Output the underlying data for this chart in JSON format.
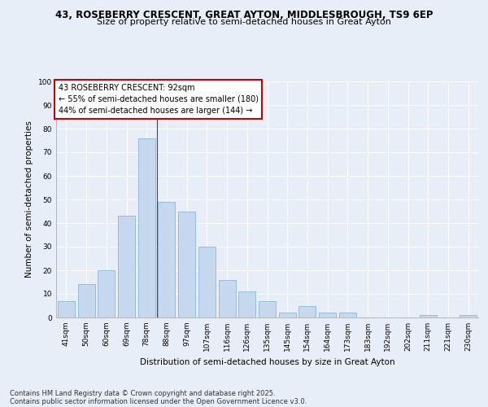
{
  "title1": "43, ROSEBERRY CRESCENT, GREAT AYTON, MIDDLESBROUGH, TS9 6EP",
  "title2": "Size of property relative to semi-detached houses in Great Ayton",
  "xlabel": "Distribution of semi-detached houses by size in Great Ayton",
  "ylabel": "Number of semi-detached properties",
  "categories": [
    "41sqm",
    "50sqm",
    "60sqm",
    "69sqm",
    "78sqm",
    "88sqm",
    "97sqm",
    "107sqm",
    "116sqm",
    "126sqm",
    "135sqm",
    "145sqm",
    "154sqm",
    "164sqm",
    "173sqm",
    "183sqm",
    "192sqm",
    "202sqm",
    "211sqm",
    "221sqm",
    "230sqm"
  ],
  "values": [
    7,
    14,
    20,
    43,
    76,
    49,
    45,
    30,
    16,
    11,
    7,
    2,
    5,
    2,
    2,
    0,
    0,
    0,
    1,
    0,
    1
  ],
  "bar_color": "#c5d8ed",
  "bar_edge_color": "#7aafd4",
  "vline_x": 4.5,
  "annotation_title": "43 ROSEBERRY CRESCENT: 92sqm",
  "annotation_line1": "← 55% of semi-detached houses are smaller (180)",
  "annotation_line2": "44% of semi-detached houses are larger (144) →",
  "ylim": [
    0,
    100
  ],
  "yticks": [
    0,
    10,
    20,
    30,
    40,
    50,
    60,
    70,
    80,
    90,
    100
  ],
  "background_color": "#e8eef8",
  "plot_bg_color": "#e8eef8",
  "footer1": "Contains HM Land Registry data © Crown copyright and database right 2025.",
  "footer2": "Contains public sector information licensed under the Open Government Licence v3.0.",
  "annotation_box_color": "#ffffff",
  "annotation_border_color": "#cc0000",
  "title_fontsize": 8.5,
  "subtitle_fontsize": 8,
  "axis_label_fontsize": 7.5,
  "tick_fontsize": 6.5,
  "annotation_fontsize": 7,
  "footer_fontsize": 6
}
